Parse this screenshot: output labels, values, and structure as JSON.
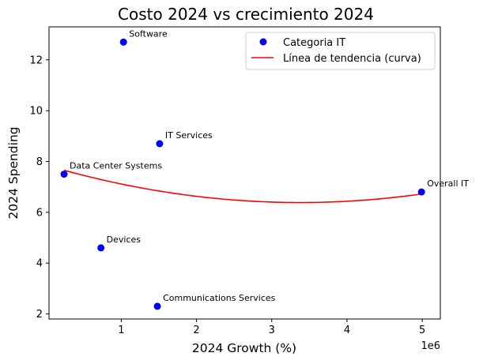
{
  "chart_data": {
    "type": "scatter",
    "title": "Costo 2024 vs crecimiento 2024",
    "xlabel": "2024 Growth (%)",
    "ylabel": "2024 Spending",
    "x_offset_text": "1e6",
    "xlim": [
      40000,
      5240000
    ],
    "ylim": [
      1.8,
      13.3
    ],
    "x_ticks": [
      1000000,
      2000000,
      3000000,
      4000000,
      5000000
    ],
    "x_tick_labels": [
      "1",
      "2",
      "3",
      "4",
      "5"
    ],
    "y_ticks": [
      2,
      4,
      6,
      8,
      10,
      12
    ],
    "y_tick_labels": [
      "2",
      "4",
      "6",
      "8",
      "10",
      "12"
    ],
    "grid": false,
    "legend_position": "top-right",
    "colors": {
      "points": "#0000ff",
      "trend": "#ff0000"
    },
    "series": [
      {
        "name": "Categoria IT",
        "marker": "circle",
        "points": [
          {
            "label": "Software",
            "x": 1030000,
            "y": 12.7
          },
          {
            "label": "IT Services",
            "x": 1510000,
            "y": 8.7
          },
          {
            "label": "Data Center Systems",
            "x": 240000,
            "y": 7.5
          },
          {
            "label": "Overall IT",
            "x": 4990000,
            "y": 6.8
          },
          {
            "label": "Devices",
            "x": 730000,
            "y": 4.6
          },
          {
            "label": "Communications Services",
            "x": 1480000,
            "y": 2.3
          }
        ]
      },
      {
        "name": "Línea de tendencia (curva)",
        "type": "line",
        "x_range": [
          240000,
          4990000
        ],
        "coefficients": [
          1.2908e-13,
          -8.718e-07,
          7.856
        ]
      }
    ]
  }
}
